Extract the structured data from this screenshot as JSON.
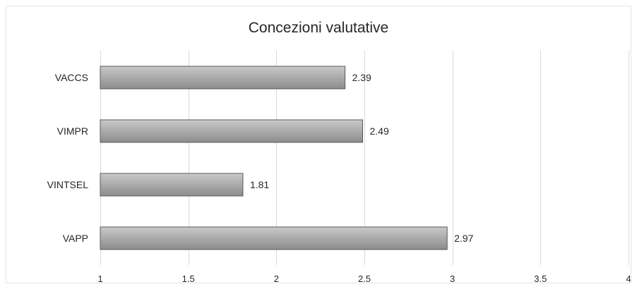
{
  "chart_data": {
    "type": "bar",
    "orientation": "horizontal",
    "title": "Concezioni valutative",
    "xlabel": "",
    "ylabel": "",
    "categories": [
      "VACCS",
      "VIMPR",
      "VINTSEL",
      "VAPP"
    ],
    "values": [
      2.39,
      2.49,
      1.81,
      2.97
    ],
    "value_labels": [
      "2.39",
      "2.49",
      "1.81",
      "2.97"
    ],
    "xlim": [
      1,
      4
    ],
    "x_ticks": [
      1,
      1.5,
      2,
      2.5,
      3,
      3.5,
      4
    ],
    "x_tick_labels": [
      "1",
      "1.5",
      "2",
      "2.5",
      "3",
      "3.5",
      "4"
    ],
    "grid": true,
    "legend": "none",
    "colors": {
      "bar_fill_top": "#c9c9c9",
      "bar_fill_bottom": "#8c8c8c",
      "bar_stroke": "#595959",
      "grid": "#d9d9d9",
      "text": "#262626"
    }
  }
}
